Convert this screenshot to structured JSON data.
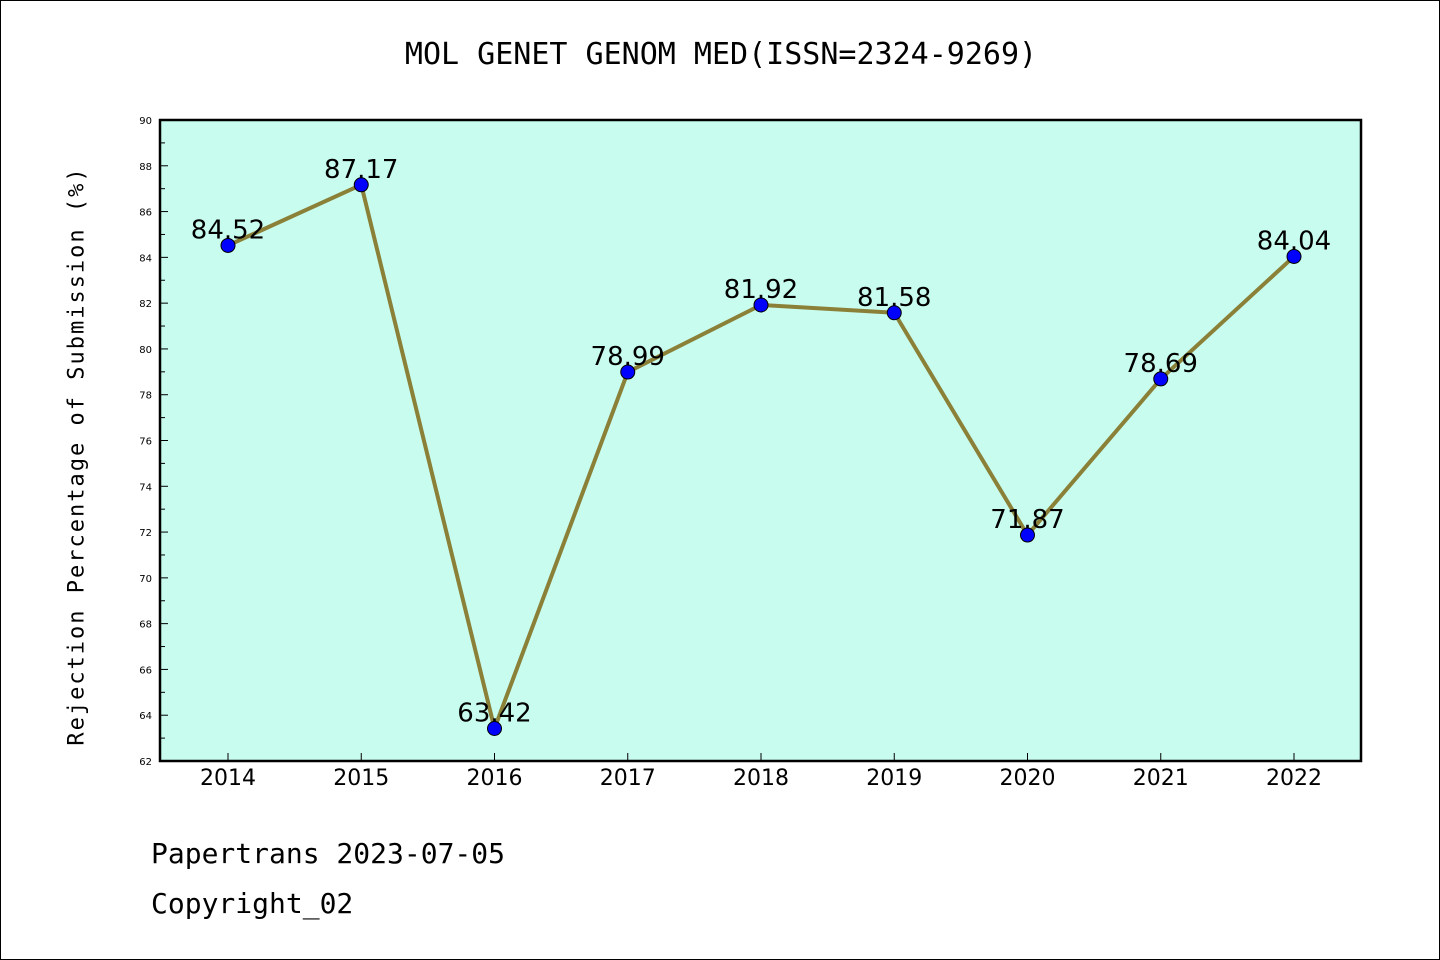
{
  "chart_data": {
    "type": "line",
    "title": "MOL GENET GENOM MED(ISSN=2324-9269)",
    "xlabel": "",
    "ylabel": "Rejection Percentage of Submission (%)",
    "categories": [
      "2014",
      "2015",
      "2016",
      "2017",
      "2018",
      "2019",
      "2020",
      "2021",
      "2022"
    ],
    "series": [
      {
        "values": [
          84.52,
          87.17,
          63.42,
          78.99,
          81.92,
          81.58,
          71.87,
          78.69,
          84.04
        ],
        "labels": [
          "84.52",
          "87.17",
          "63.42",
          "78.99",
          "81.92",
          "81.58",
          "71.87",
          "78.69",
          "84.04"
        ]
      }
    ],
    "ylim": [
      62,
      90
    ],
    "yticks": [
      "62",
      "64",
      "66",
      "68",
      "70",
      "72",
      "74",
      "76",
      "78",
      "80",
      "82",
      "84",
      "86",
      "88",
      "90"
    ],
    "grid": false,
    "colors": {
      "plot_background": "#c8fcee",
      "line": "#8b8038",
      "marker": "#0000ff"
    }
  },
  "footer": {
    "line1": "Papertrans 2023-07-05",
    "line2": "Copyright_02"
  }
}
